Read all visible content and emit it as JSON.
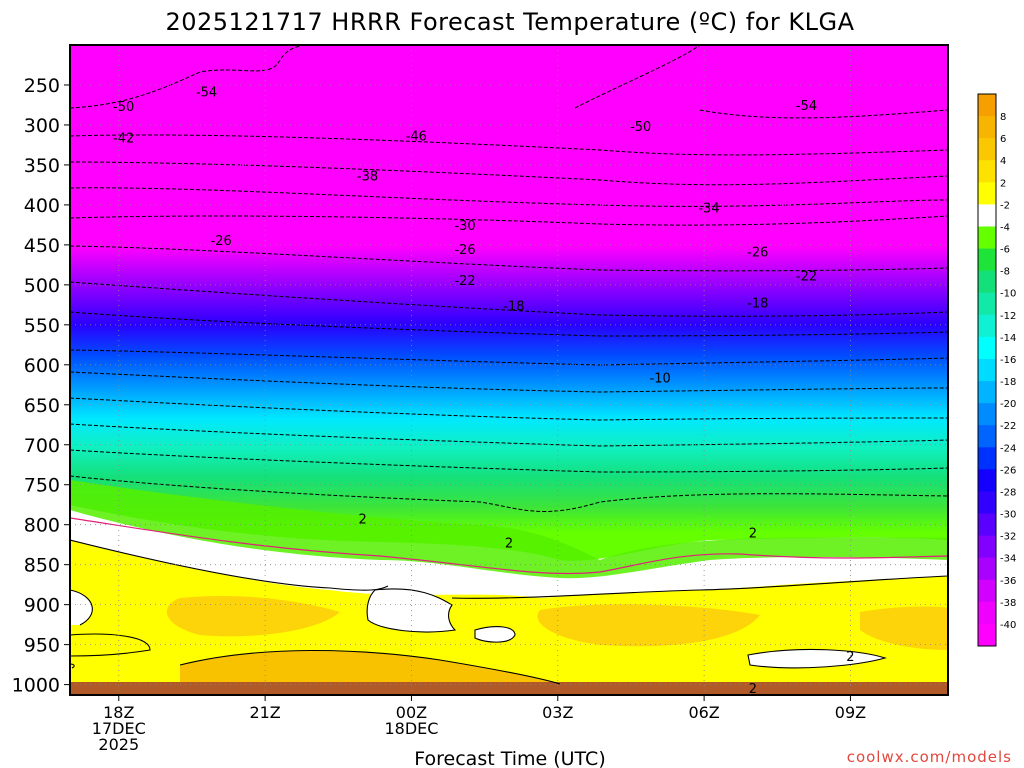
{
  "chart_data": {
    "type": "heatmap",
    "title": "2025121717 HRRR Forecast Temperature (ºC) for KLGA",
    "xlabel": "Forecast Time (UTC)",
    "ylabel": "",
    "x_ticks": [
      {
        "label": [
          "18Z",
          "17DEC",
          "2025"
        ],
        "hour": 1
      },
      {
        "label": [
          "21Z"
        ],
        "hour": 4
      },
      {
        "label": [
          "00Z",
          "18DEC"
        ],
        "hour": 7
      },
      {
        "label": [
          "03Z"
        ],
        "hour": 10
      },
      {
        "label": [
          "06Z"
        ],
        "hour": 13
      },
      {
        "label": [
          "09Z"
        ],
        "hour": 16
      }
    ],
    "xlim": [
      0,
      18
    ],
    "y_ticks": [
      "250",
      "300",
      "350",
      "400",
      "450",
      "500",
      "550",
      "600",
      "650",
      "700",
      "750",
      "800",
      "850",
      "900",
      "950",
      "1000"
    ],
    "y_tick_values": [
      250,
      300,
      350,
      400,
      450,
      500,
      550,
      600,
      650,
      700,
      750,
      800,
      850,
      900,
      950,
      1000
    ],
    "ylim_hPa": [
      1013,
      200
    ],
    "y_scale": "pressure",
    "grid": true,
    "colorbar": {
      "labels": [
        "8",
        "6",
        "4",
        "2",
        "-2",
        "-4",
        "-6",
        "-8",
        "-10",
        "-12",
        "-14",
        "-16",
        "-18",
        "-20",
        "-22",
        "-24",
        "-26",
        "-28",
        "-30",
        "-32",
        "-34",
        "-36",
        "-38",
        "-40"
      ],
      "colors": [
        "#f5a000",
        "#f7b400",
        "#fac800",
        "#fde200",
        "#ffff00",
        "#ffffff",
        "#66ff00",
        "#1ee43a",
        "#14e07a",
        "#12e8a8",
        "#10f0d2",
        "#00ffff",
        "#00dcff",
        "#00b4ff",
        "#008cff",
        "#0064ff",
        "#0032ff",
        "#1400ff",
        "#3200ff",
        "#5a00ff",
        "#8200ff",
        "#aa00ff",
        "#d200ff",
        "#f000ff",
        "#ff00ff"
      ]
    },
    "contour_labels": [
      {
        "text": "-54",
        "hour": 2.8,
        "hPa": 258
      },
      {
        "text": "-50",
        "hour": 1.1,
        "hPa": 276
      },
      {
        "text": "-42",
        "hour": 1.1,
        "hPa": 316
      },
      {
        "text": "-54",
        "hour": 15.1,
        "hPa": 275
      },
      {
        "text": "-50",
        "hour": 11.7,
        "hPa": 301
      },
      {
        "text": "-46",
        "hour": 7.1,
        "hPa": 313
      },
      {
        "text": "-38",
        "hour": 6.1,
        "hPa": 363
      },
      {
        "text": "-34",
        "hour": 13.1,
        "hPa": 403
      },
      {
        "text": "-30",
        "hour": 8.1,
        "hPa": 425
      },
      {
        "text": "-26",
        "hour": 3.1,
        "hPa": 444
      },
      {
        "text": "-26",
        "hour": 8.1,
        "hPa": 455
      },
      {
        "text": "-26",
        "hour": 14.1,
        "hPa": 458
      },
      {
        "text": "-22",
        "hour": 8.1,
        "hPa": 494
      },
      {
        "text": "-22",
        "hour": 15.1,
        "hPa": 488
      },
      {
        "text": "-18",
        "hour": 9.1,
        "hPa": 526
      },
      {
        "text": "-18",
        "hour": 14.1,
        "hPa": 522
      },
      {
        "text": "-10",
        "hour": 12.1,
        "hPa": 616
      },
      {
        "text": "2",
        "hour": 6.0,
        "hPa": 792
      },
      {
        "text": "2",
        "hour": 9.0,
        "hPa": 822
      },
      {
        "text": "2",
        "hour": 14.0,
        "hPa": 810
      },
      {
        "text": "2",
        "hour": 16.0,
        "hPa": 964
      },
      {
        "text": "2",
        "hour": 14.0,
        "hPa": 1004
      }
    ]
  },
  "credit": "coolwx.com/models"
}
